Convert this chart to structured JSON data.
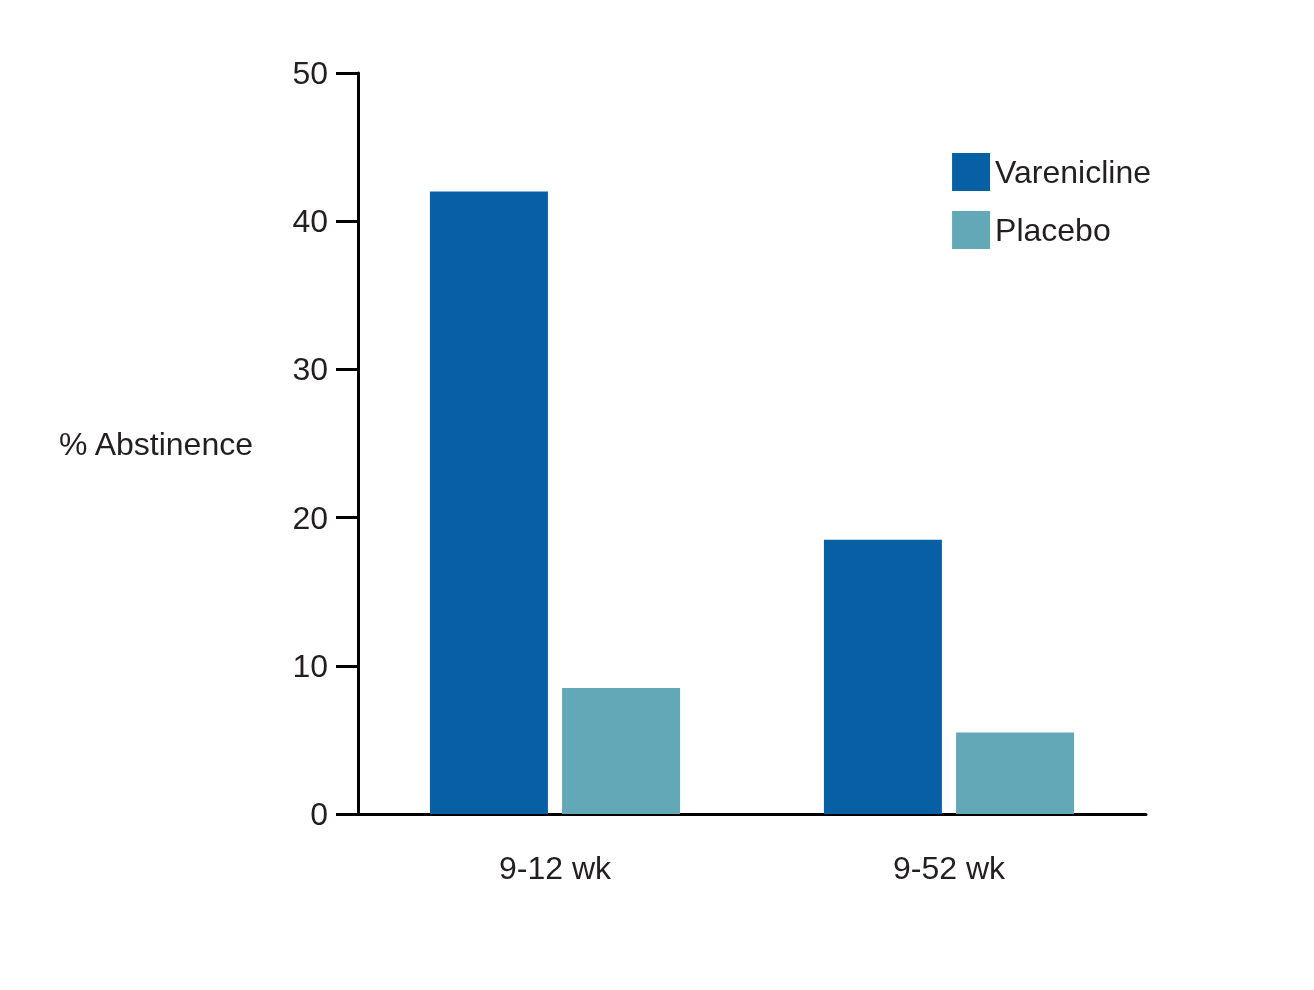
{
  "chart_data": {
    "type": "bar",
    "ylabel": "% Abstinence",
    "categories": [
      "9-12 wk",
      "9-52 wk"
    ],
    "series": [
      {
        "name": "Varenicline",
        "color": "#0660a3",
        "values": [
          42,
          18.5
        ]
      },
      {
        "name": "Placebo",
        "color": "#62a8b7",
        "values": [
          8.5,
          5.5
        ]
      }
    ],
    "ylim": [
      0,
      50
    ],
    "yticks": [
      0,
      10,
      20,
      30,
      40,
      50
    ],
    "grid": false,
    "legend": "top right"
  }
}
